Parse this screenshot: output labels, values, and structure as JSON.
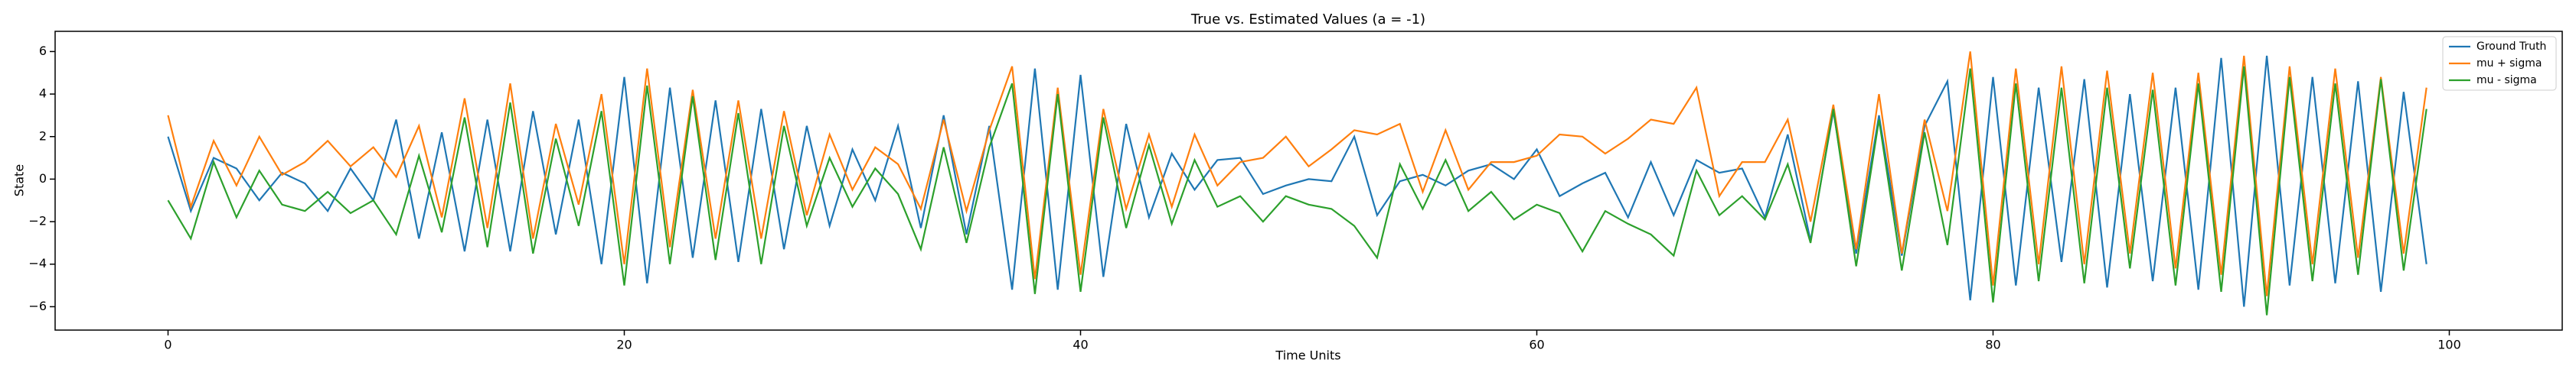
{
  "chart_data": {
    "type": "line",
    "title": "True vs. Estimated Values (a = -1)",
    "x_label": "Time Units",
    "y_label": "State",
    "x": [
      0,
      1,
      2,
      3,
      4,
      5,
      6,
      7,
      8,
      9,
      10,
      11,
      12,
      13,
      14,
      15,
      16,
      17,
      18,
      19,
      20,
      21,
      22,
      23,
      24,
      25,
      26,
      27,
      28,
      29,
      30,
      31,
      32,
      33,
      34,
      35,
      36,
      37,
      38,
      39,
      40,
      41,
      42,
      43,
      44,
      45,
      46,
      47,
      48,
      49,
      50,
      51,
      52,
      53,
      54,
      55,
      56,
      57,
      58,
      59,
      60,
      61,
      62,
      63,
      64,
      65,
      66,
      67,
      68,
      69,
      70,
      71,
      72,
      73,
      74,
      75,
      76,
      77,
      78,
      79,
      80,
      81,
      82,
      83,
      84,
      85,
      86,
      87,
      88,
      89,
      90,
      91,
      92,
      93,
      94,
      95,
      96,
      97,
      98,
      99
    ],
    "series": [
      {
        "name": "Ground Truth",
        "color": "#1f77b4",
        "values": [
          2,
          -1.5,
          1,
          0.5,
          -1,
          0.3,
          -0.2,
          -1.5,
          0.5,
          -1,
          2.8,
          -2.8,
          2.2,
          -3.4,
          2.8,
          -3.4,
          3.2,
          -2.6,
          2.8,
          -4,
          4.8,
          -4.9,
          4.3,
          -3.7,
          3.7,
          -3.9,
          3.3,
          -3.3,
          2.5,
          -2.2,
          1.4,
          -1,
          2.5,
          -2.3,
          3,
          -2.6,
          2.5,
          -5.2,
          5.2,
          -5.2,
          4.9,
          -4.6,
          2.6,
          -1.8,
          1.2,
          -0.5,
          0.9,
          1,
          -0.7,
          -0.3,
          0,
          -0.1,
          2,
          -1.7,
          -0.1,
          0.2,
          -0.3,
          0.4,
          0.7,
          0,
          1.4,
          -0.8,
          -0.2,
          0.3,
          -1.8,
          0.8,
          -1.7,
          0.9,
          0.3,
          0.5,
          -1.8,
          2.1,
          -2.9,
          3.2,
          -3.5,
          3,
          -3.6,
          2.5,
          4.6,
          -5.7,
          4.8,
          -5,
          4.3,
          -3.9,
          4.7,
          -5.1,
          4,
          -4.8,
          4.3,
          -5.2,
          5.7,
          -6,
          5.8,
          -5,
          4.8,
          -4.9,
          4.6,
          -5.3,
          4.1,
          -4
        ]
      },
      {
        "name": "mu + sigma",
        "color": "#ff7f0e",
        "values": [
          3,
          -1.3,
          1.8,
          -0.3,
          2,
          0.2,
          0.8,
          1.8,
          0.6,
          1.5,
          0.1,
          2.5,
          -1.8,
          3.8,
          -2.3,
          4.5,
          -2.8,
          2.6,
          -1.2,
          4,
          -4,
          5.2,
          -3.2,
          4.2,
          -2.8,
          3.7,
          -2.8,
          3.2,
          -1.7,
          2.1,
          -0.5,
          1.5,
          0.7,
          -1.4,
          2.8,
          -1.5,
          2.3,
          5.3,
          -4.7,
          4.3,
          -4.5,
          3.3,
          -1.4,
          2.1,
          -1.3,
          2.1,
          -0.3,
          0.8,
          1,
          2,
          0.6,
          1.4,
          2.3,
          2.1,
          2.6,
          -0.6,
          2.3,
          -0.5,
          0.8,
          0.8,
          1.1,
          2.1,
          2,
          1.2,
          1.9,
          2.8,
          2.6,
          4.3,
          -0.8,
          0.8,
          0.8,
          2.8,
          -2,
          3.5,
          -3.3,
          4,
          -3.5,
          2.8,
          -1.5,
          6,
          -5,
          5.2,
          -4,
          5.3,
          -4,
          5.1,
          -3.5,
          5,
          -4.2,
          5,
          -4.5,
          5.8,
          -5.5,
          5.3,
          -4,
          5.2,
          -3.7,
          4.8,
          -3.5,
          4.3
        ]
      },
      {
        "name": "mu - sigma",
        "color": "#2ca02c",
        "values": [
          -1,
          -2.8,
          0.8,
          -1.8,
          0.4,
          -1.2,
          -1.5,
          -0.6,
          -1.6,
          -1,
          -2.6,
          1.1,
          -2.5,
          2.9,
          -3.2,
          3.6,
          -3.5,
          1.9,
          -2.2,
          3.2,
          -5,
          4.4,
          -4,
          3.9,
          -3.8,
          3.1,
          -4,
          2.5,
          -2.2,
          1,
          -1.3,
          0.5,
          -0.7,
          -3.3,
          1.5,
          -3,
          1.5,
          4.5,
          -5.4,
          4,
          -5.3,
          2.9,
          -2.3,
          1.6,
          -2.1,
          0.9,
          -1.3,
          -0.8,
          -2,
          -0.8,
          -1.2,
          -1.4,
          -2.2,
          -3.7,
          0.7,
          -1.4,
          0.9,
          -1.5,
          -0.6,
          -1.9,
          -1.2,
          -1.6,
          -3.4,
          -1.5,
          -2.1,
          -2.6,
          -3.6,
          0.4,
          -1.7,
          -0.8,
          -1.9,
          0.7,
          -3,
          3.3,
          -4.1,
          2.8,
          -4.3,
          2.2,
          -3.1,
          5.2,
          -5.8,
          4.5,
          -4.8,
          4.3,
          -4.9,
          4.3,
          -4.2,
          4.2,
          -5,
          4.5,
          -5.3,
          5.3,
          -6.4,
          4.8,
          -4.8,
          4.5,
          -4.5,
          4.7,
          -4.3,
          3.3
        ]
      }
    ],
    "xlim": [
      -4.95,
      104.95
    ],
    "ylim": [
      -7.1,
      6.95
    ],
    "xticks": [
      0,
      20,
      40,
      60,
      80,
      100
    ],
    "yticks": [
      {
        "value": -6,
        "label": "−6"
      },
      {
        "value": -4,
        "label": "−4"
      },
      {
        "value": -2,
        "label": "−2"
      },
      0,
      2,
      4,
      6
    ],
    "legend": "upper right"
  }
}
